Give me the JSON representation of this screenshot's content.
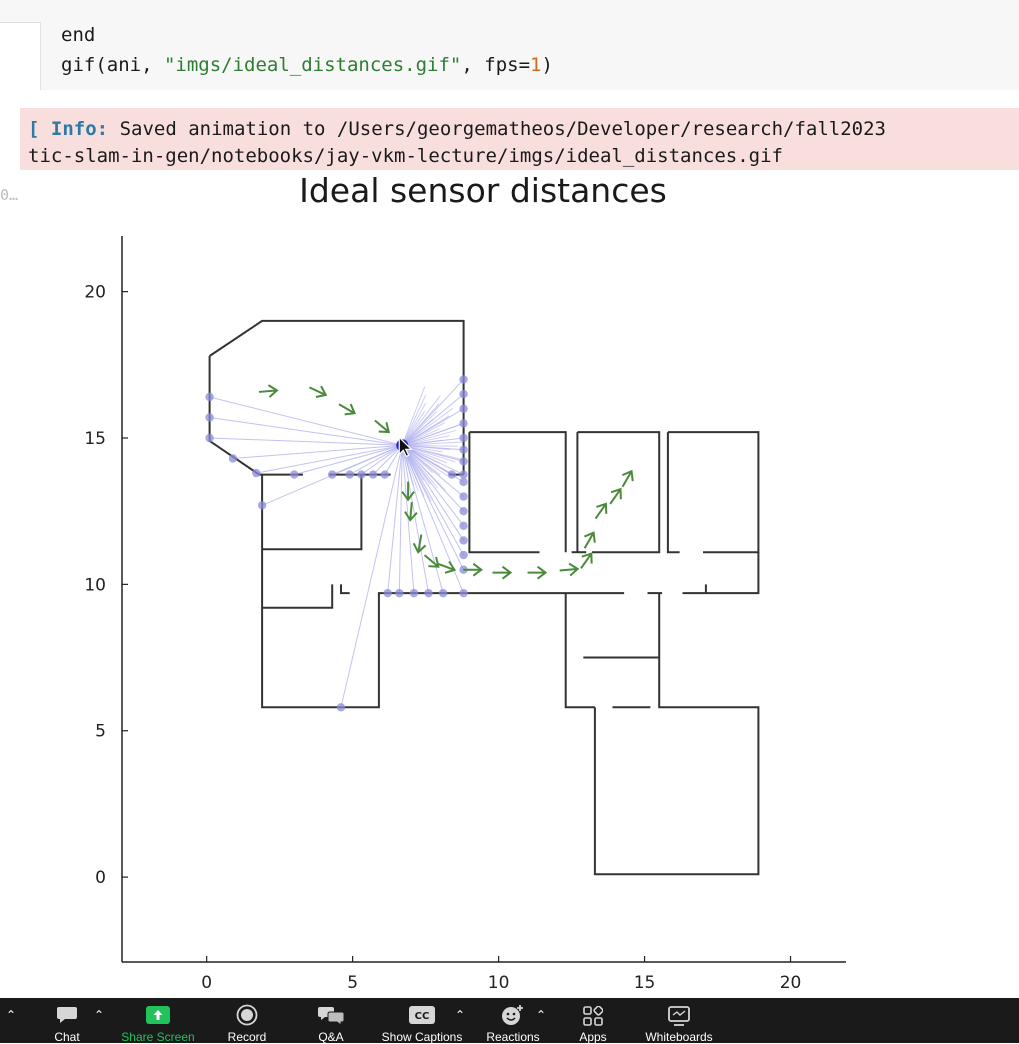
{
  "code": {
    "line1": "end",
    "line2_fn": "gif(ani, ",
    "line2_str": "\"imgs/ideal_distances.gif\"",
    "line2_mid": ", fps=",
    "line2_num": "1",
    "line2_end": ")"
  },
  "output": {
    "bracket": "[",
    "tag": "Info:",
    "line1_text": "Saved animation to /Users/georgematheos/Developer/research/fall2023",
    "line2_text": "tic-slam-in-gen/notebooks/jay-vkm-lecture/imgs/ideal_distances.gif"
  },
  "exec_count": "0…",
  "chart_data": {
    "type": "scatter",
    "title": "Ideal sensor distances",
    "xlabel": "",
    "ylabel": "",
    "xlim": [
      -2.9,
      21.9
    ],
    "ylim": [
      -2.9,
      21.9
    ],
    "xticks": [
      0,
      5,
      10,
      15,
      20
    ],
    "yticks": [
      0,
      5,
      10,
      15,
      20
    ],
    "grid": false,
    "legend": "none",
    "colors": {
      "walls": "#333333",
      "rays": "#aeaeee",
      "hits": "#8b8bd8",
      "poses": "#4a8a3a",
      "sensor": "#2222cc"
    },
    "sensor_position": [
      6.7,
      14.75
    ],
    "walls": [
      [
        [
          0.1,
          17.8
        ],
        [
          1.9,
          19.0
        ],
        [
          8.8,
          19.0
        ],
        [
          8.8,
          13.75
        ]
      ],
      [
        [
          0.1,
          17.8
        ],
        [
          0.1,
          14.9
        ],
        [
          1.8,
          13.75
        ],
        [
          3.3,
          13.75
        ]
      ],
      [
        [
          4.2,
          13.75
        ],
        [
          6.3,
          13.75
        ]
      ],
      [
        [
          8.3,
          13.75
        ],
        [
          8.8,
          13.75
        ]
      ],
      [
        [
          1.9,
          13.75
        ],
        [
          1.9,
          5.8
        ],
        [
          5.9,
          5.8
        ],
        [
          5.9,
          9.7
        ],
        [
          6.0,
          9.7
        ],
        [
          8.8,
          9.7
        ],
        [
          14.3,
          9.7
        ]
      ],
      [
        [
          1.9,
          11.2
        ],
        [
          5.3,
          11.2
        ],
        [
          5.3,
          13.75
        ]
      ],
      [
        [
          1.9,
          9.2
        ],
        [
          4.3,
          9.2
        ],
        [
          4.3,
          10.0
        ]
      ],
      [
        [
          4.6,
          10.0
        ],
        [
          4.6,
          9.7
        ],
        [
          4.9,
          9.7
        ]
      ],
      [
        [
          9.0,
          15.2
        ],
        [
          12.3,
          15.2
        ],
        [
          12.3,
          11.1
        ]
      ],
      [
        [
          9.0,
          15.2
        ],
        [
          9.0,
          11.1
        ],
        [
          11.4,
          11.1
        ]
      ],
      [
        [
          12.5,
          11.1
        ],
        [
          13.0,
          11.1
        ]
      ],
      [
        [
          12.7,
          15.2
        ],
        [
          12.7,
          11.1
        ]
      ],
      [
        [
          12.7,
          15.2
        ],
        [
          15.5,
          15.2
        ],
        [
          15.5,
          11.1
        ],
        [
          13.2,
          11.1
        ]
      ],
      [
        [
          15.8,
          15.2
        ],
        [
          18.9,
          15.2
        ],
        [
          18.9,
          11.1
        ],
        [
          17.0,
          11.1
        ]
      ],
      [
        [
          15.8,
          15.2
        ],
        [
          15.8,
          11.1
        ],
        [
          16.2,
          11.1
        ]
      ],
      [
        [
          15.1,
          9.7
        ],
        [
          15.6,
          9.7
        ]
      ],
      [
        [
          15.5,
          9.7
        ],
        [
          15.5,
          5.8
        ],
        [
          16.0,
          5.8
        ],
        [
          18.9,
          5.8
        ],
        [
          18.9,
          0.1
        ],
        [
          13.3,
          0.1
        ],
        [
          13.3,
          5.8
        ]
      ],
      [
        [
          13.3,
          5.8
        ],
        [
          13.1,
          5.8
        ],
        [
          12.3,
          5.8
        ],
        [
          12.3,
          9.7
        ]
      ],
      [
        [
          13.9,
          5.8
        ],
        [
          15.2,
          5.8
        ]
      ],
      [
        [
          16.3,
          9.7
        ],
        [
          18.9,
          9.7
        ],
        [
          18.9,
          11.1
        ]
      ],
      [
        [
          17.1,
          10.0
        ],
        [
          17.1,
          9.7
        ]
      ],
      [
        [
          12.9,
          7.5
        ],
        [
          15.5,
          7.5
        ]
      ]
    ],
    "sensor_hits": [
      [
        0.1,
        16.4
      ],
      [
        0.1,
        15.7
      ],
      [
        0.1,
        15.0
      ],
      [
        0.9,
        14.3
      ],
      [
        1.7,
        13.8
      ],
      [
        1.9,
        12.7
      ],
      [
        3.0,
        13.75
      ],
      [
        4.3,
        13.75
      ],
      [
        4.9,
        13.75
      ],
      [
        5.3,
        13.75
      ],
      [
        5.7,
        13.75
      ],
      [
        6.1,
        13.75
      ],
      [
        8.4,
        13.75
      ],
      [
        8.8,
        13.75
      ],
      [
        4.6,
        5.8
      ],
      [
        6.2,
        9.7
      ],
      [
        6.6,
        9.7
      ],
      [
        7.1,
        9.7
      ],
      [
        7.6,
        9.7
      ],
      [
        8.1,
        9.7
      ],
      [
        8.8,
        9.7
      ],
      [
        8.8,
        10.5
      ],
      [
        8.8,
        11.0
      ],
      [
        8.8,
        11.5
      ],
      [
        8.8,
        12.0
      ],
      [
        8.8,
        12.5
      ],
      [
        8.8,
        13.0
      ],
      [
        8.8,
        13.5
      ],
      [
        8.8,
        14.2
      ],
      [
        8.8,
        14.6
      ],
      [
        8.8,
        15.0
      ],
      [
        8.8,
        15.5
      ],
      [
        8.8,
        16.0
      ],
      [
        8.8,
        16.5
      ],
      [
        8.8,
        17.0
      ]
    ],
    "poses": [
      {
        "x": 2.1,
        "y": 16.6,
        "angle": 5
      },
      {
        "x": 3.8,
        "y": 16.6,
        "angle": -25
      },
      {
        "x": 4.8,
        "y": 16.0,
        "angle": -30
      },
      {
        "x": 6.0,
        "y": 15.4,
        "angle": -40
      },
      {
        "x": 6.9,
        "y": 13.2,
        "angle": -90
      },
      {
        "x": 7.0,
        "y": 12.5,
        "angle": -95
      },
      {
        "x": 7.3,
        "y": 11.4,
        "angle": -100
      },
      {
        "x": 7.7,
        "y": 10.8,
        "angle": -40
      },
      {
        "x": 8.2,
        "y": 10.6,
        "angle": -20
      },
      {
        "x": 9.1,
        "y": 10.5,
        "angle": 0
      },
      {
        "x": 10.1,
        "y": 10.4,
        "angle": 0
      },
      {
        "x": 11.3,
        "y": 10.4,
        "angle": 0
      },
      {
        "x": 12.4,
        "y": 10.5,
        "angle": 5
      },
      {
        "x": 13.0,
        "y": 10.8,
        "angle": 55
      },
      {
        "x": 13.1,
        "y": 11.5,
        "angle": 60
      },
      {
        "x": 13.5,
        "y": 12.5,
        "angle": 55
      },
      {
        "x": 14.0,
        "y": 13.0,
        "angle": 55
      },
      {
        "x": 14.4,
        "y": 13.6,
        "angle": 60
      }
    ]
  },
  "zoom_toolbar": {
    "items": [
      {
        "label": "Chat",
        "icon": "chat-bubble-icon"
      },
      {
        "label": "Share Screen",
        "icon": "share-screen-icon"
      },
      {
        "label": "Record",
        "icon": "record-icon"
      },
      {
        "label": "Q&A",
        "icon": "qa-icon"
      },
      {
        "label": "Show Captions",
        "icon": "captions-icon",
        "icon_text": "CC"
      },
      {
        "label": "Reactions",
        "icon": "reactions-icon"
      },
      {
        "label": "Apps",
        "icon": "apps-icon"
      },
      {
        "label": "Whiteboards",
        "icon": "whiteboard-icon"
      }
    ],
    "share_color": "#22c25a"
  }
}
